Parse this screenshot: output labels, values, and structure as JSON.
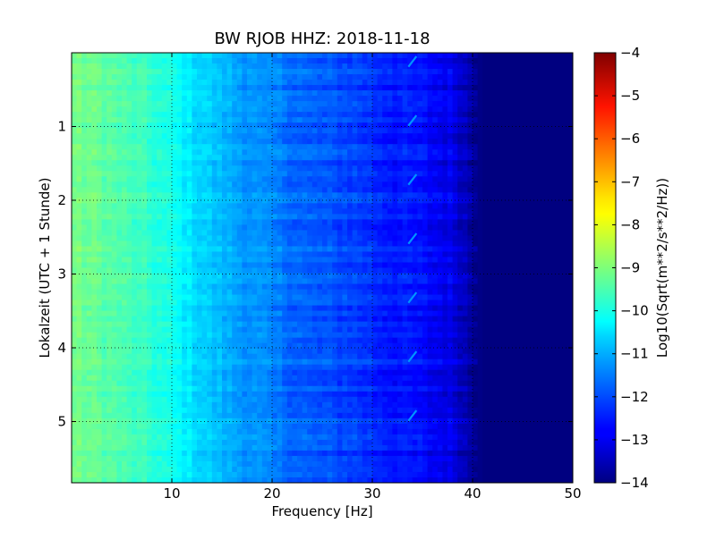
{
  "chart_data": {
    "type": "heatmap",
    "title": "BW RJOB HHZ: 2018-11-18",
    "xlabel": "Frequency [Hz]",
    "ylabel": "Lokalzeit (UTC + 1 Stunde)",
    "xlim": [
      0,
      50
    ],
    "ylim": [
      5.83,
      0
    ],
    "x_ticks": [
      10,
      20,
      30,
      40,
      50
    ],
    "y_ticks": [
      1,
      2,
      3,
      4,
      5
    ],
    "grid": true,
    "colormap": "jet",
    "colorbar": {
      "label": "Log10(Sqrt(m**2/s**2/Hz))",
      "range": [
        -14,
        -4
      ],
      "ticks": [
        -4,
        -5,
        -6,
        -7,
        -8,
        -9,
        -10,
        -11,
        -12,
        -13,
        -14
      ]
    },
    "frequency_profile": {
      "frequency_hz": [
        0,
        2,
        5,
        8,
        10,
        12,
        14,
        16,
        18,
        20,
        22,
        24,
        26,
        28,
        30,
        32,
        34,
        36,
        38,
        39,
        40,
        41,
        43,
        50
      ],
      "log10_amplitude": [
        -9.1,
        -9.2,
        -9.5,
        -9.8,
        -10.1,
        -10.5,
        -10.8,
        -11.1,
        -11.3,
        -11.5,
        -11.7,
        -11.9,
        -12.0,
        -12.1,
        -12.3,
        -12.5,
        -12.6,
        -12.8,
        -13.0,
        -13.3,
        -13.7,
        -14.0,
        -14.0,
        -14.0
      ]
    },
    "harmonic_features": {
      "frequency_hz": 34,
      "peak_times_hours": [
        0.05,
        0.85,
        1.65,
        2.45,
        3.25,
        4.05,
        4.85
      ]
    }
  }
}
